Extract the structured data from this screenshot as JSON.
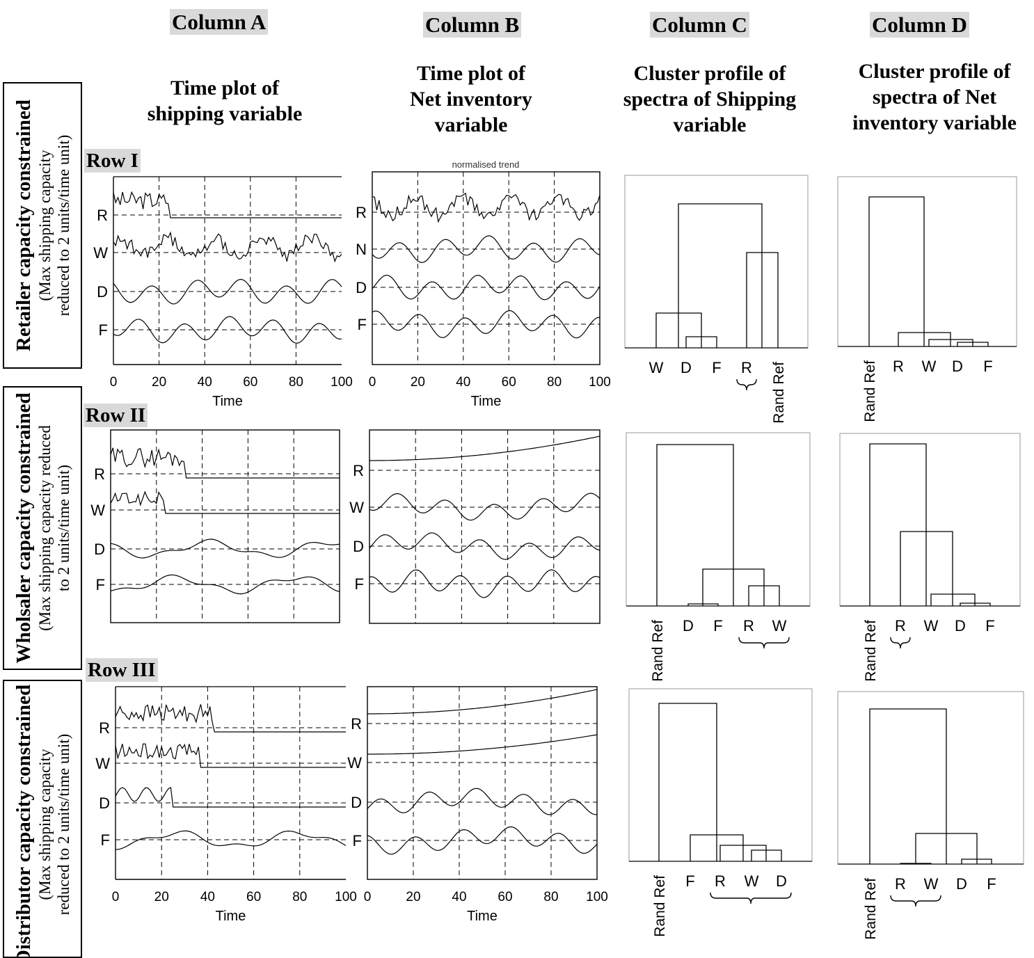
{
  "columns": [
    {
      "head": "Column A",
      "title": [
        "Time plot of",
        "shipping variable"
      ]
    },
    {
      "head": "Column B",
      "title": [
        "Time plot of",
        "Net inventory",
        "variable"
      ]
    },
    {
      "head": "Column C",
      "title": [
        "Cluster profile of",
        "spectra of Shipping",
        "variable"
      ]
    },
    {
      "head": "Column D",
      "title": [
        "Cluster profile of",
        "spectra of Net",
        "inventory variable"
      ]
    }
  ],
  "rows": [
    {
      "head": "Row I",
      "label": "Retailer capacity constrained",
      "note1": "(Max shipping capacity",
      "note2": "reduced to 2 units/time unit)"
    },
    {
      "head": "Row II",
      "label": "Wholsaler capacity constrained",
      "note1": "(Max shipping capacity reduced",
      "note2": "to 2 units/time unit)"
    },
    {
      "head": "Row III",
      "label": "Distributor capacity constrained",
      "note1": "(Max shipping capacity",
      "note2": "reduced to 2 units/time unit)"
    }
  ],
  "partial_caption": "normalised trend",
  "chart_data": [
    {
      "type": "line",
      "panel": "A-I",
      "series": [
        {
          "name": "R"
        },
        {
          "name": "W"
        },
        {
          "name": "D"
        },
        {
          "name": "F"
        }
      ],
      "xlim": [
        0,
        100
      ],
      "xticks": [
        0,
        20,
        40,
        60,
        80,
        100
      ],
      "xlabel": "Time"
    },
    {
      "type": "line",
      "panel": "B-I",
      "series": [
        {
          "name": "R"
        },
        {
          "name": "N"
        },
        {
          "name": "D"
        },
        {
          "name": "F"
        }
      ],
      "xlim": [
        0,
        100
      ],
      "xticks": [
        0,
        20,
        40,
        60,
        80,
        100
      ],
      "xlabel": "Time"
    },
    {
      "type": "line",
      "panel": "A-II",
      "series": [
        {
          "name": "R"
        },
        {
          "name": "W"
        },
        {
          "name": "D"
        },
        {
          "name": "F"
        }
      ],
      "xlim": [
        0,
        100
      ]
    },
    {
      "type": "line",
      "panel": "B-II",
      "series": [
        {
          "name": "R"
        },
        {
          "name": "W"
        },
        {
          "name": "D"
        },
        {
          "name": "F"
        }
      ],
      "xlim": [
        0,
        100
      ]
    },
    {
      "type": "line",
      "panel": "A-III",
      "series": [
        {
          "name": "R"
        },
        {
          "name": "W"
        },
        {
          "name": "D"
        },
        {
          "name": "F"
        }
      ],
      "xlim": [
        0,
        100
      ],
      "xticks": [
        0,
        20,
        40,
        60,
        80,
        100
      ],
      "xlabel": "Time"
    },
    {
      "type": "line",
      "panel": "B-III",
      "series": [
        {
          "name": "R"
        },
        {
          "name": "W"
        },
        {
          "name": "D"
        },
        {
          "name": "F"
        }
      ],
      "xlim": [
        0,
        100
      ],
      "xticks": [
        0,
        20,
        40,
        60,
        80,
        100
      ],
      "xlabel": "Time"
    },
    {
      "type": "dendrogram",
      "panel": "C-I",
      "leaves": [
        "W",
        "D",
        "F",
        "R",
        "Rand Ref"
      ]
    },
    {
      "type": "dendrogram",
      "panel": "D-I",
      "leaves": [
        "Rand Ref",
        "R",
        "W",
        "D",
        "F"
      ]
    },
    {
      "type": "dendrogram",
      "panel": "C-II",
      "leaves": [
        "Rand Ref",
        "D",
        "F",
        "R",
        "W"
      ]
    },
    {
      "type": "dendrogram",
      "panel": "D-II",
      "leaves": [
        "Rand Ref",
        "R",
        "W",
        "D",
        "F"
      ]
    },
    {
      "type": "dendrogram",
      "panel": "C-III",
      "leaves": [
        "Rand Ref",
        "F",
        "R",
        "W",
        "D"
      ]
    },
    {
      "type": "dendrogram",
      "panel": "D-III",
      "leaves": [
        "Rand Ref",
        "R",
        "W",
        "D",
        "F"
      ]
    }
  ]
}
